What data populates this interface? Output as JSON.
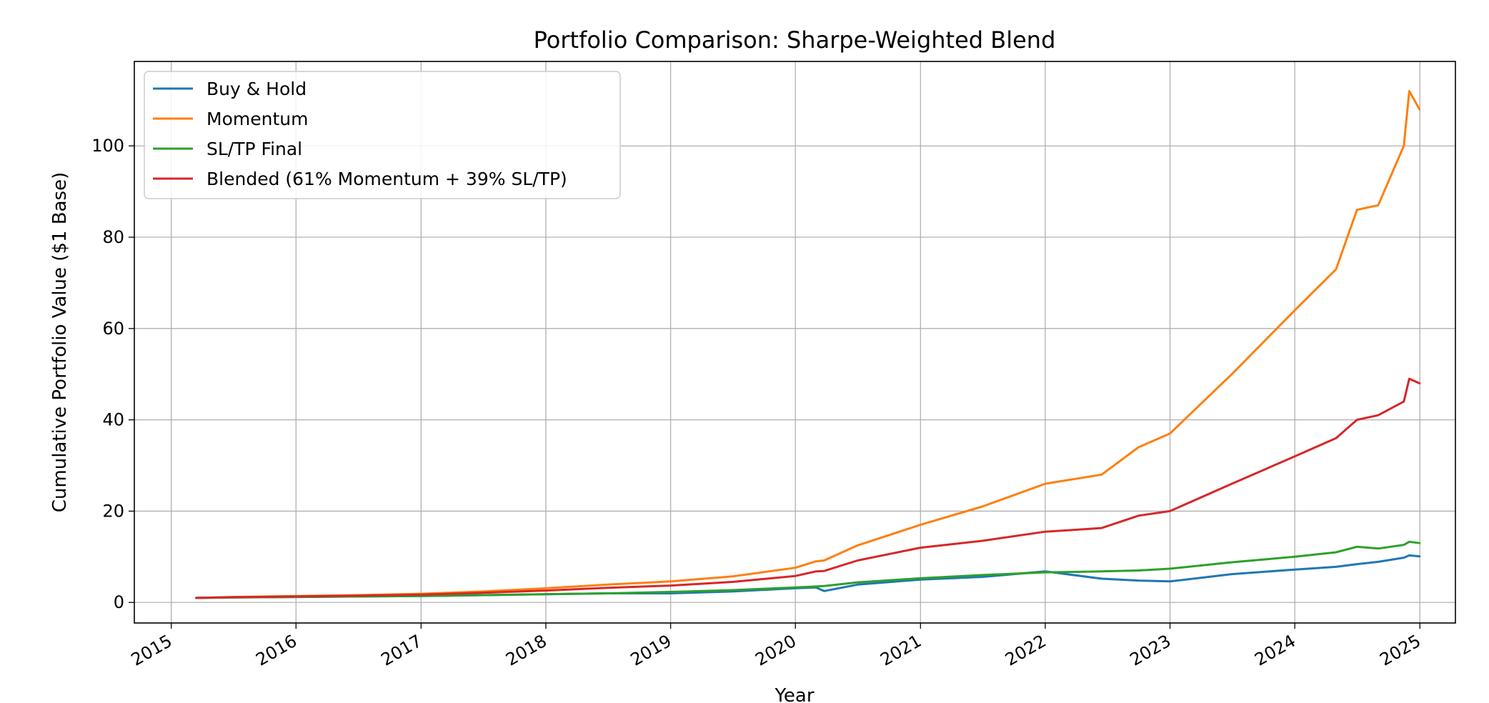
{
  "chart_data": {
    "type": "line",
    "title": "Portfolio Comparison: Sharpe-Weighted Blend",
    "xlabel": "Year",
    "ylabel": "Cumulative Portfolio Value ($1 Base)",
    "x_type": "date",
    "xlim": [
      "2014-09-15",
      "2025-04-15"
    ],
    "ylim": [
      -4.5,
      118.5
    ],
    "x_ticks": [
      "2015",
      "2016",
      "2017",
      "2018",
      "2019",
      "2020",
      "2021",
      "2022",
      "2023",
      "2024",
      "2025"
    ],
    "y_ticks": [
      0,
      20,
      40,
      60,
      80,
      100
    ],
    "grid": true,
    "legend_position": "top-left",
    "x": [
      "2015-03-15",
      "2015-07-01",
      "2016-01-01",
      "2016-07-01",
      "2017-01-01",
      "2017-07-01",
      "2018-01-01",
      "2018-07-01",
      "2019-01-01",
      "2019-07-01",
      "2020-01-01",
      "2020-03-01",
      "2020-03-25",
      "2020-07-01",
      "2021-01-01",
      "2021-07-01",
      "2022-01-01",
      "2022-06-15",
      "2022-10-01",
      "2023-01-01",
      "2023-07-01",
      "2024-01-01",
      "2024-05-01",
      "2024-07-01",
      "2024-09-01",
      "2024-11-15",
      "2024-12-01",
      "2024-12-31"
    ],
    "series": [
      {
        "name": "Buy & Hold",
        "color": "#1f77b4",
        "values": [
          1.0,
          1.1,
          1.2,
          1.3,
          1.4,
          1.6,
          1.8,
          2.0,
          2.0,
          2.4,
          3.1,
          3.3,
          2.5,
          3.9,
          5.0,
          5.6,
          6.8,
          5.2,
          4.8,
          4.6,
          6.2,
          7.2,
          7.8,
          8.4,
          8.9,
          9.8,
          10.3,
          10.1
        ]
      },
      {
        "name": "Momentum",
        "color": "#ff7f0e",
        "values": [
          1.0,
          1.2,
          1.4,
          1.6,
          1.9,
          2.4,
          3.1,
          3.9,
          4.6,
          5.7,
          7.6,
          9.0,
          9.2,
          12.5,
          17.0,
          21.0,
          26.0,
          28.0,
          34.0,
          37.0,
          50.0,
          64.0,
          73.0,
          86.0,
          87.0,
          100.0,
          112.0,
          108.0
        ]
      },
      {
        "name": "SL/TP Final",
        "color": "#2ca02c",
        "values": [
          1.0,
          1.1,
          1.2,
          1.3,
          1.4,
          1.6,
          1.8,
          2.0,
          2.3,
          2.7,
          3.3,
          3.5,
          3.6,
          4.4,
          5.3,
          6.0,
          6.6,
          6.8,
          7.0,
          7.4,
          8.8,
          10.0,
          11.0,
          12.2,
          11.8,
          12.6,
          13.3,
          13.0
        ]
      },
      {
        "name": "Blended (61% Momentum + 39% SL/TP)",
        "color": "#d62728",
        "values": [
          1.0,
          1.15,
          1.3,
          1.5,
          1.7,
          2.1,
          2.6,
          3.2,
          3.7,
          4.5,
          5.8,
          6.8,
          6.9,
          9.2,
          12.0,
          13.5,
          15.5,
          16.3,
          19.0,
          20.0,
          26.0,
          32.0,
          36.0,
          40.0,
          41.0,
          44.0,
          49.0,
          48.0
        ]
      }
    ]
  }
}
